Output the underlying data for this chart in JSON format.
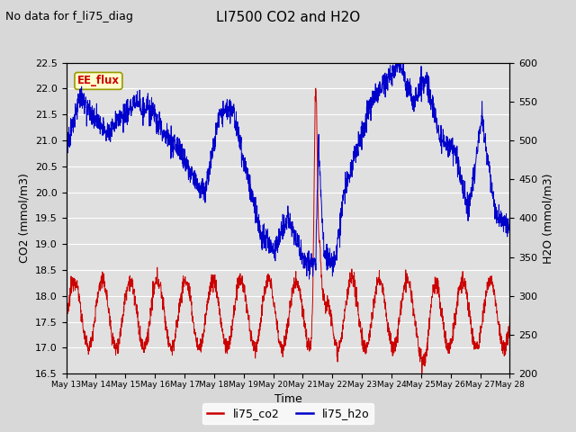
{
  "title": "LI7500 CO2 and H2O",
  "subtitle": "No data for f_li75_diag",
  "xlabel": "Time",
  "ylabel_left": "CO2 (mmol/m3)",
  "ylabel_right": "H2O (mmol/m3)",
  "ylim_left": [
    16.5,
    22.5
  ],
  "ylim_right": [
    200,
    600
  ],
  "yticks_left": [
    16.5,
    17.0,
    17.5,
    18.0,
    18.5,
    19.0,
    19.5,
    20.0,
    20.5,
    21.0,
    21.5,
    22.0,
    22.5
  ],
  "yticks_right": [
    200,
    250,
    300,
    350,
    400,
    450,
    500,
    550,
    600
  ],
  "x_tick_labels": [
    "May 13",
    "May 14",
    "May 15",
    "May 16",
    "May 17",
    "May 18",
    "May 19",
    "May 20",
    "May 21",
    "May 22",
    "May 23",
    "May 24",
    "May 25",
    "May 26",
    "May 27",
    "May 28"
  ],
  "co2_color": "#cc0000",
  "h2o_color": "#0000cc",
  "fig_bg_color": "#d8d8d8",
  "plot_bg_color": "#e0e0e0",
  "grid_color": "#ffffff",
  "ee_flux_bg": "#ffffcc",
  "ee_flux_border": "#999900",
  "ee_flux_text_color": "#cc0000",
  "legend_co2": "li75_co2",
  "legend_h2o": "li75_h2o",
  "title_fontsize": 11,
  "subtitle_fontsize": 9,
  "axis_label_fontsize": 9,
  "tick_fontsize": 8
}
